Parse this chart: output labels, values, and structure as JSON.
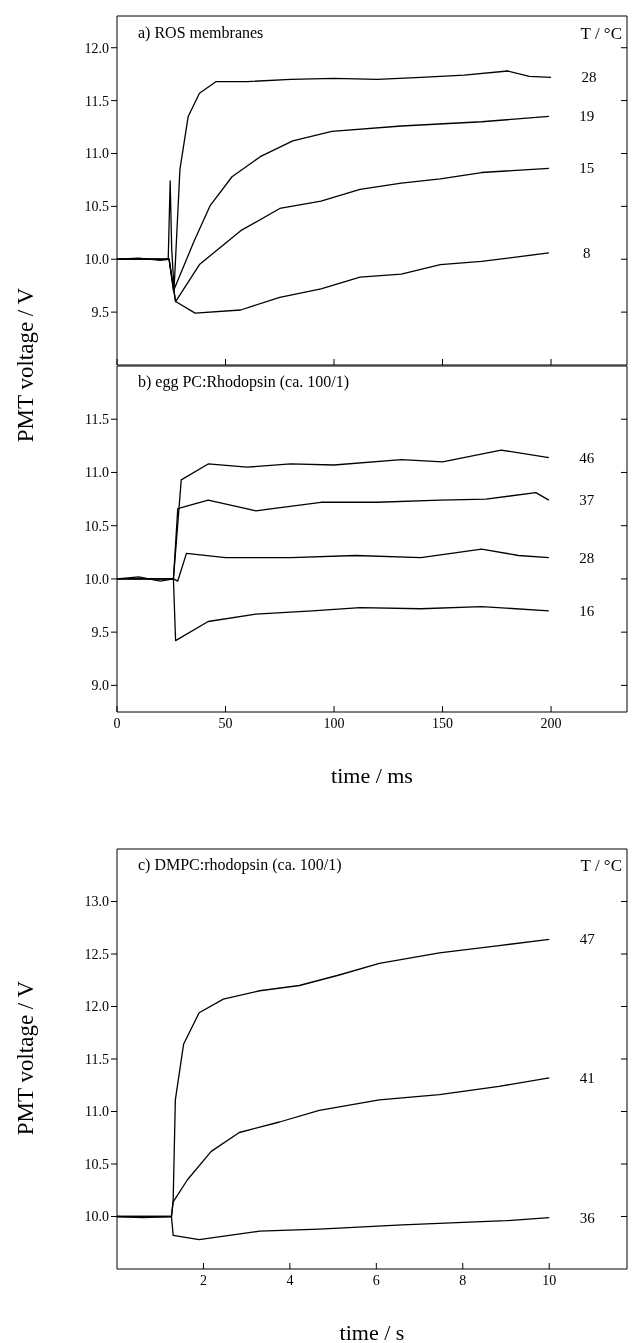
{
  "chart_data": [
    {
      "type": "line",
      "title": "a) ROS membranes",
      "legend_title": "T / °C",
      "ylabel": "PMT voltage / V",
      "marker": "none",
      "tick_labels": "y",
      "xlim": [
        0,
        235
      ],
      "xticks": [
        {
          "value": 0,
          "label": null
        },
        {
          "value": 50,
          "label": null
        },
        {
          "value": 100,
          "label": null
        },
        {
          "value": 150,
          "label": null
        },
        {
          "value": 200,
          "label": null
        }
      ],
      "ylim": [
        9.0,
        12.3
      ],
      "yticks": [
        {
          "value": 9.5,
          "label": "9.5"
        },
        {
          "value": 10,
          "label": "10.0"
        },
        {
          "value": 10.5,
          "label": "10.5"
        },
        {
          "value": 11,
          "label": "11.0"
        },
        {
          "value": 11.5,
          "label": "11.5"
        },
        {
          "value": 12,
          "label": "12.0"
        }
      ],
      "series": [
        {
          "name": "28",
          "color": "#000000",
          "x": [
            0,
            10,
            20,
            23.6,
            24.5,
            25.2,
            26.3,
            29,
            32.8,
            38,
            45.7,
            60,
            80,
            100,
            120,
            140,
            160,
            180,
            190,
            200
          ],
          "values": [
            10.0,
            10.01,
            9.99,
            10.0,
            10.74,
            10.1,
            9.72,
            10.85,
            11.35,
            11.57,
            11.68,
            11.68,
            11.7,
            11.71,
            11.7,
            11.72,
            11.74,
            11.78,
            11.73,
            11.72
          ]
        },
        {
          "name": "19",
          "color": "#000000",
          "x": [
            0,
            24,
            26,
            35.5,
            43,
            53,
            66,
            81,
            99,
            131,
            168,
            199
          ],
          "values": [
            10.0,
            10.0,
            9.7,
            10.17,
            10.51,
            10.78,
            10.97,
            11.12,
            11.21,
            11.26,
            11.3,
            11.35
          ]
        },
        {
          "name": "15",
          "color": "#000000",
          "x": [
            0,
            24,
            27,
            38,
            57,
            75,
            94,
            112,
            131,
            149,
            168,
            199
          ],
          "values": [
            10.0,
            10.0,
            9.6,
            9.95,
            10.27,
            10.48,
            10.55,
            10.66,
            10.72,
            10.76,
            10.82,
            10.86
          ]
        },
        {
          "name": "8",
          "color": "#000000",
          "x": [
            0,
            24,
            27,
            36,
            57,
            75,
            94,
            112,
            131,
            149,
            168,
            199
          ],
          "values": [
            10.0,
            10.0,
            9.6,
            9.49,
            9.52,
            9.64,
            9.72,
            9.83,
            9.86,
            9.95,
            9.98,
            10.06
          ]
        }
      ]
    },
    {
      "type": "line",
      "title": "b) egg PC:Rhodopsin (ca. 100/1)",
      "xlabel": "time / ms",
      "marker": "none",
      "xlim": [
        0,
        235
      ],
      "xticks": [
        0,
        50,
        100,
        150,
        200
      ],
      "ylim": [
        8.75,
        12.0
      ],
      "yticks": [
        {
          "value": 9,
          "label": "9.0"
        },
        {
          "value": 9.5,
          "label": "9.5"
        },
        {
          "value": 10,
          "label": "10.0"
        },
        {
          "value": 10.5,
          "label": "10.5"
        },
        {
          "value": 11,
          "label": "11.0"
        },
        {
          "value": 11.5,
          "label": "11.5"
        }
      ],
      "series": [
        {
          "name": "46",
          "color": "#000000",
          "x": [
            0,
            10,
            20,
            26,
            29.6,
            42,
            60,
            80,
            100,
            131,
            150,
            177,
            199
          ],
          "values": [
            10.0,
            10.02,
            9.98,
            10.0,
            10.93,
            11.08,
            11.05,
            11.08,
            11.07,
            11.12,
            11.1,
            11.21,
            11.14
          ]
        },
        {
          "name": "37",
          "color": "#000000",
          "x": [
            0,
            26,
            28,
            42,
            64,
            94,
            120,
            149,
            170,
            193,
            199
          ],
          "values": [
            10.0,
            10.0,
            10.66,
            10.74,
            10.64,
            10.72,
            10.72,
            10.74,
            10.75,
            10.81,
            10.74
          ]
        },
        {
          "name": "28",
          "color": "#000000",
          "x": [
            0,
            26,
            28,
            32,
            50,
            80,
            110,
            140,
            168,
            185,
            199
          ],
          "values": [
            10.0,
            10.0,
            9.98,
            10.24,
            10.2,
            10.2,
            10.22,
            10.2,
            10.28,
            10.22,
            10.2
          ]
        },
        {
          "name": "16",
          "color": "#000000",
          "x": [
            0,
            26,
            27,
            42,
            64,
            90,
            112,
            140,
            168,
            199
          ],
          "values": [
            10.0,
            10.0,
            9.42,
            9.6,
            9.67,
            9.7,
            9.73,
            9.72,
            9.74,
            9.7
          ]
        }
      ]
    },
    {
      "type": "line",
      "title": "c) DMPC:rhodopsin (ca. 100/1)",
      "legend_title": "T / °C",
      "xlabel": "time / s",
      "ylabel": "PMT voltage / V",
      "marker": "none",
      "xlim": [
        0,
        11.8
      ],
      "xticks": [
        2,
        4,
        6,
        8,
        10
      ],
      "ylim": [
        9.5,
        13.5
      ],
      "yticks": [
        {
          "value": 10,
          "label": "10.0"
        },
        {
          "value": 10.5,
          "label": "10.5"
        },
        {
          "value": 11,
          "label": "11.0"
        },
        {
          "value": 11.5,
          "label": "11.5"
        },
        {
          "value": 12,
          "label": "12.0"
        },
        {
          "value": 12.5,
          "label": "12.5"
        },
        {
          "value": 13,
          "label": "13.0"
        }
      ],
      "series": [
        {
          "name": "47",
          "color": "#000000",
          "x": [
            0,
            0.6,
            1.26,
            1.3,
            1.35,
            1.54,
            1.9,
            2.46,
            3.3,
            4.22,
            5.14,
            6.07,
            7.46,
            8.84,
            10
          ],
          "values": [
            10.0,
            9.99,
            10.0,
            10.16,
            11.11,
            11.64,
            11.94,
            12.07,
            12.15,
            12.2,
            12.3,
            12.41,
            12.51,
            12.58,
            12.64
          ]
        },
        {
          "name": "41",
          "color": "#000000",
          "x": [
            0,
            1.26,
            1.3,
            1.63,
            2.18,
            2.83,
            3.76,
            4.68,
            6.07,
            7.46,
            8.84,
            10
          ],
          "values": [
            10.0,
            10.0,
            10.14,
            10.35,
            10.62,
            10.8,
            10.9,
            11.01,
            11.11,
            11.16,
            11.24,
            11.32
          ]
        },
        {
          "name": "36",
          "color": "#000000",
          "x": [
            0,
            1.26,
            1.3,
            1.9,
            3.3,
            4.68,
            6.6,
            9,
            10
          ],
          "values": [
            10.0,
            10.0,
            9.82,
            9.78,
            9.86,
            9.88,
            9.92,
            9.96,
            9.99
          ]
        }
      ]
    }
  ]
}
